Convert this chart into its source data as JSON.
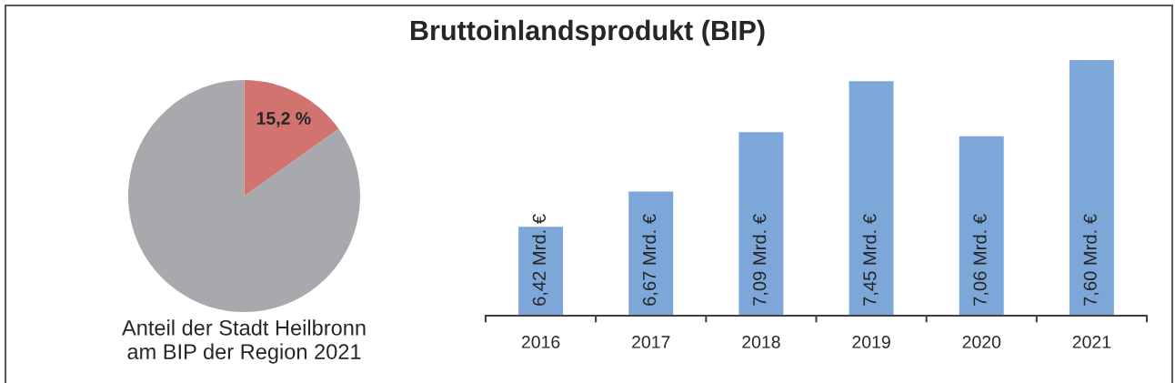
{
  "chart_data": [
    {
      "type": "pie",
      "xlabel": "Anteil der Stadt Heilbronn\nam BIP der Region 2021",
      "categories": [
        null,
        null
      ],
      "values": [
        15.2,
        84.8
      ],
      "colors": [
        "#d1736f",
        "#a8a9ac"
      ],
      "value_labels": [
        "15,2 %",
        null
      ]
    },
    {
      "type": "bar",
      "title": "Bruttoinlandsprodukt (BIP)",
      "categories": [
        "2016",
        "2017",
        "2018",
        "2019",
        "2020",
        "2021"
      ],
      "values": [
        6.42,
        6.67,
        7.09,
        7.45,
        7.06,
        7.6
      ],
      "color": "#7da7d9",
      "value_labels": [
        "6,42 Mrd. €",
        "6,67 Mrd. €",
        "7,09 Mrd. €",
        "7,45 Mrd. €",
        "7,06 Mrd. €",
        "7,60 Mrd. €"
      ],
      "ylim": [
        5.79,
        7.6
      ],
      "tick_labels": "x"
    }
  ]
}
